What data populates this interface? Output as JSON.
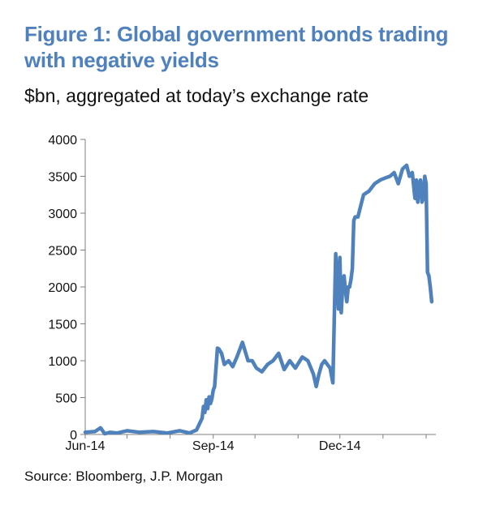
{
  "chart_data": {
    "type": "line",
    "title": "Figure 1: Global government bonds trading with negative yields",
    "subtitle": "$bn, aggregated at today’s exchange rate",
    "source": "Source: Bloomberg, J.P. Morgan",
    "xlabel": "",
    "ylabel": "",
    "ylim": [
      0,
      4000
    ],
    "yticks": [
      "0",
      "500",
      "1000",
      "1500",
      "2000",
      "2500",
      "3000",
      "3500",
      "4000"
    ],
    "xticks": [
      {
        "label": "Jun-14",
        "date": "2014-06-01"
      },
      {
        "label": "Sep-14",
        "date": "2014-09-01"
      },
      {
        "label": "Dec-14",
        "date": "2014-12-01"
      }
    ],
    "xlim": [
      "2014-06-01",
      "2015-02-08"
    ],
    "grid": false,
    "line_color": "#4f81bd",
    "series": [
      {
        "x": [
          "2014-06-01",
          "2014-06-08",
          "2014-06-12",
          "2014-06-15",
          "2014-06-19",
          "2014-06-24",
          "2014-07-01",
          "2014-07-10",
          "2014-07-20",
          "2014-07-30",
          "2014-08-08",
          "2014-08-15",
          "2014-08-20",
          "2014-08-24",
          "2014-08-25",
          "2014-08-26",
          "2014-08-27",
          "2014-08-28",
          "2014-08-29",
          "2014-08-30",
          "2014-08-31",
          "2014-09-01",
          "2014-09-02",
          "2014-09-03",
          "2014-09-04",
          "2014-09-05",
          "2014-09-07",
          "2014-09-09",
          "2014-09-12",
          "2014-09-15",
          "2014-09-18",
          "2014-09-22",
          "2014-09-26",
          "2014-09-29",
          "2014-10-02",
          "2014-10-06",
          "2014-10-10",
          "2014-10-14",
          "2014-10-18",
          "2014-10-22",
          "2014-10-26",
          "2014-10-30",
          "2014-11-04",
          "2014-11-08",
          "2014-11-12",
          "2014-11-14",
          "2014-11-16",
          "2014-11-18",
          "2014-11-20",
          "2014-11-22",
          "2014-11-24",
          "2014-11-26",
          "2014-11-28",
          "2014-11-30",
          "2014-12-01",
          "2014-12-02",
          "2014-12-03",
          "2014-12-04",
          "2014-12-05",
          "2014-12-06",
          "2014-12-07",
          "2014-12-08",
          "2014-12-09",
          "2014-12-10",
          "2014-12-11",
          "2014-12-12",
          "2014-12-14",
          "2014-12-16",
          "2014-12-18",
          "2014-12-22",
          "2014-12-26",
          "2014-12-30",
          "2015-01-03",
          "2015-01-06",
          "2015-01-09",
          "2015-01-12",
          "2015-01-15",
          "2015-01-18",
          "2015-01-20",
          "2015-01-22",
          "2015-01-24",
          "2015-01-25",
          "2015-01-26",
          "2015-01-27",
          "2015-01-28",
          "2015-01-29",
          "2015-01-30",
          "2015-01-31",
          "2015-02-01",
          "2015-02-02",
          "2015-02-03",
          "2015-02-04",
          "2015-02-05"
        ],
        "values": [
          30,
          40,
          90,
          10,
          30,
          20,
          50,
          30,
          40,
          20,
          50,
          20,
          60,
          220,
          380,
          300,
          470,
          350,
          510,
          420,
          480,
          600,
          650,
          900,
          1170,
          1160,
          1100,
          950,
          1000,
          920,
          1050,
          1250,
          1000,
          1000,
          900,
          850,
          950,
          1000,
          1100,
          880,
          1000,
          900,
          1050,
          1000,
          820,
          650,
          820,
          950,
          1000,
          950,
          900,
          700,
          2450,
          1700,
          2400,
          1650,
          2000,
          2150,
          1950,
          1800,
          2000,
          2000,
          2100,
          2250,
          2900,
          2950,
          2950,
          3100,
          3250,
          3300,
          3400,
          3450,
          3480,
          3500,
          3550,
          3400,
          3600,
          3650,
          3500,
          3550,
          3200,
          3450,
          3150,
          3400,
          3450,
          3150,
          3200,
          3500,
          3400,
          2200,
          2150,
          2000,
          1800
        ]
      }
    ]
  }
}
